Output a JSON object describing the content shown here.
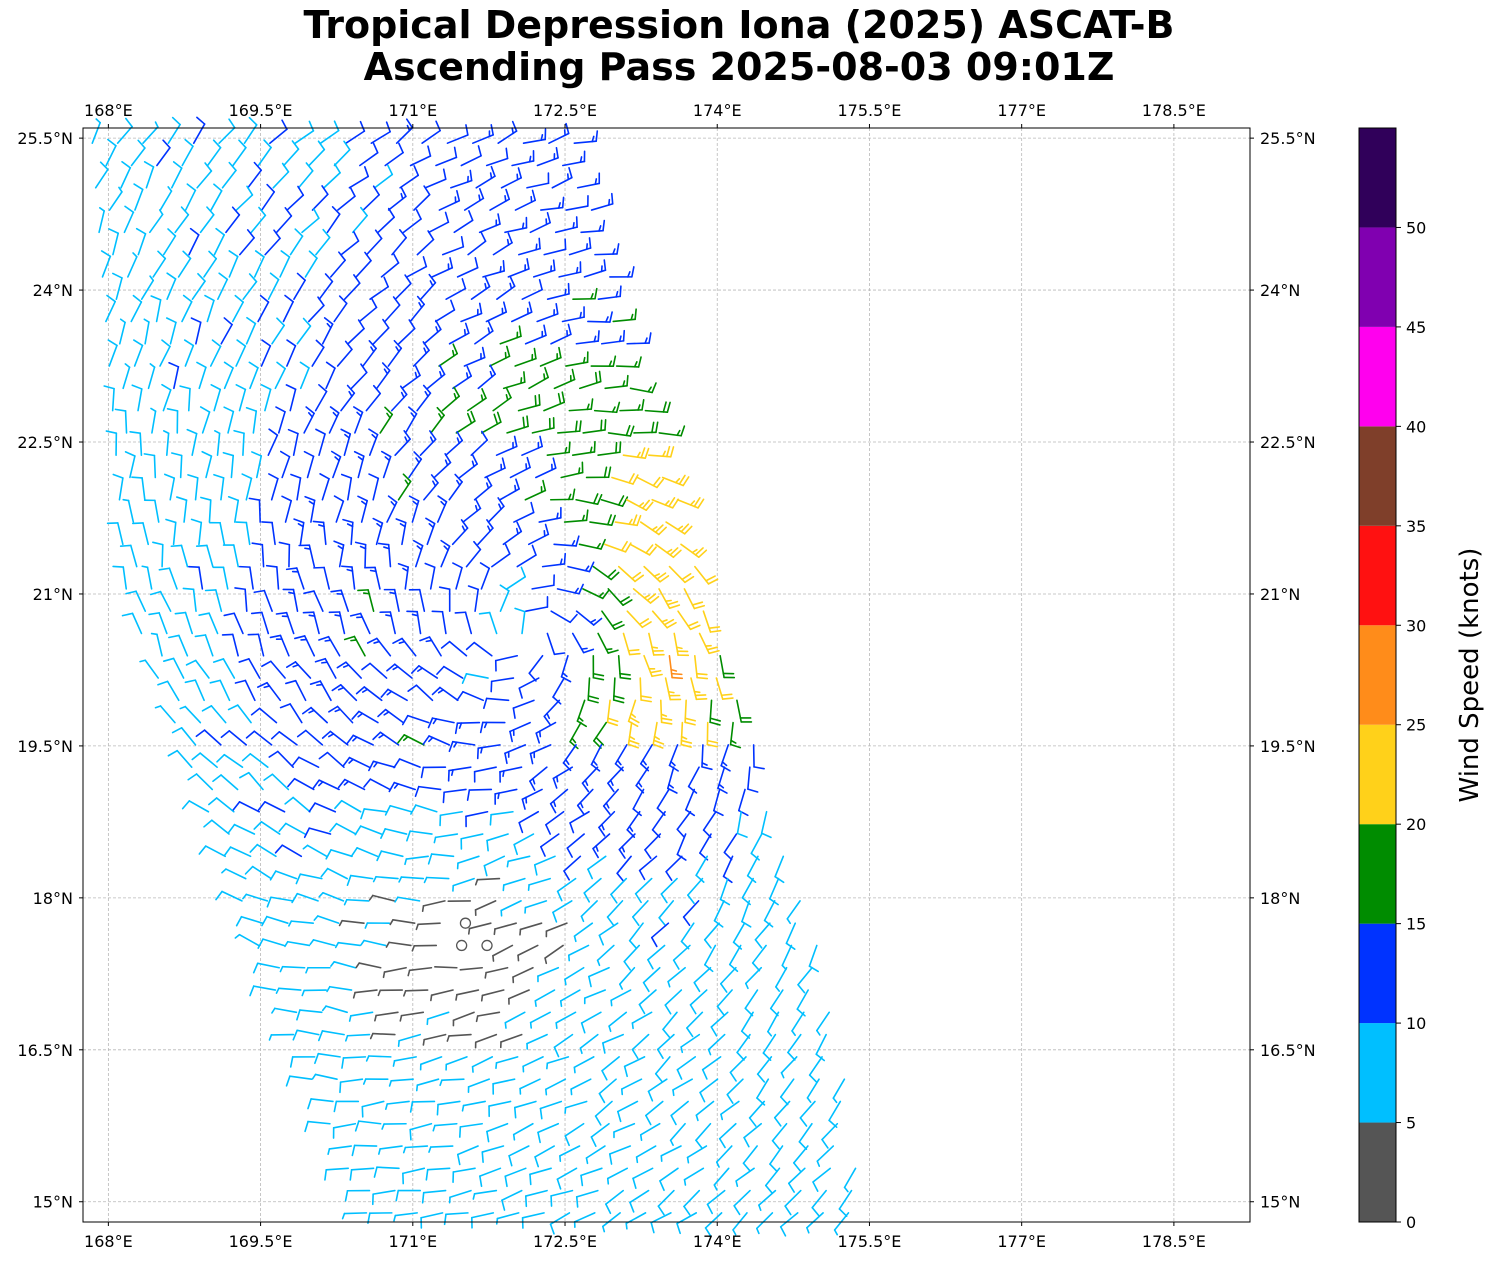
{
  "title": {
    "line1": "Tropical Depression Iona (2025) ASCAT-B",
    "line2": "Ascending Pass 2025-08-03 09:01Z"
  },
  "chart_data": {
    "type": "scatter",
    "plot_kind": "wind barbs on lat/lon map",
    "x_axis": {
      "range": [
        167.75,
        179.25
      ],
      "ticks": [
        168,
        169.5,
        171,
        172.5,
        174,
        175.5,
        177,
        178.5
      ],
      "tick_labels": [
        "168°E",
        "169.5°E",
        "171°E",
        "172.5°E",
        "174°E",
        "175.5°E",
        "177°E",
        "178.5°E"
      ],
      "labels_top": true,
      "labels_bottom": true
    },
    "y_axis": {
      "range": [
        14.8,
        25.6
      ],
      "ticks": [
        15,
        16.5,
        18,
        19.5,
        21,
        22.5,
        24,
        25.5
      ],
      "tick_labels": [
        "15°N",
        "16.5°N",
        "18°N",
        "19.5°N",
        "21°N",
        "22.5°N",
        "24°N",
        "25.5°N"
      ],
      "labels_left": true,
      "labels_right": true
    },
    "grid": true,
    "grid_style": "dashed",
    "circulation_center_approx": [
      172.1,
      20.6
    ],
    "calm_center_approx": [
      171.6,
      17.6
    ],
    "swath": {
      "west_edge": [
        [
          167.75,
          25.6
        ],
        [
          168.1,
          21.0
        ],
        [
          169.6,
          17.0
        ],
        [
          170.5,
          14.8
        ]
      ],
      "east_edge": [
        [
          172.6,
          25.6
        ],
        [
          174.0,
          20.8
        ],
        [
          175.2,
          17.0
        ],
        [
          175.5,
          14.8
        ]
      ]
    },
    "colorbar": {
      "label": "Wind Speed (knots)",
      "ticks": [
        0,
        5,
        10,
        15,
        20,
        25,
        30,
        35,
        40,
        45,
        50
      ],
      "bins": [
        {
          "min": 0,
          "max": 5,
          "color": "#555555"
        },
        {
          "min": 5,
          "max": 10,
          "color": "#00bfff"
        },
        {
          "min": 10,
          "max": 15,
          "color": "#0033ff"
        },
        {
          "min": 15,
          "max": 20,
          "color": "#008c00"
        },
        {
          "min": 20,
          "max": 25,
          "color": "#ffd11a"
        },
        {
          "min": 25,
          "max": 30,
          "color": "#ff8c1a"
        },
        {
          "min": 30,
          "max": 35,
          "color": "#ff1111"
        },
        {
          "min": 35,
          "max": 40,
          "color": "#7f3f2a"
        },
        {
          "min": 40,
          "max": 45,
          "color": "#ff00ee"
        },
        {
          "min": 45,
          "max": 50,
          "color": "#8000b0"
        },
        {
          "min": 50,
          "max": 55,
          "color": "#30005a"
        }
      ]
    }
  }
}
